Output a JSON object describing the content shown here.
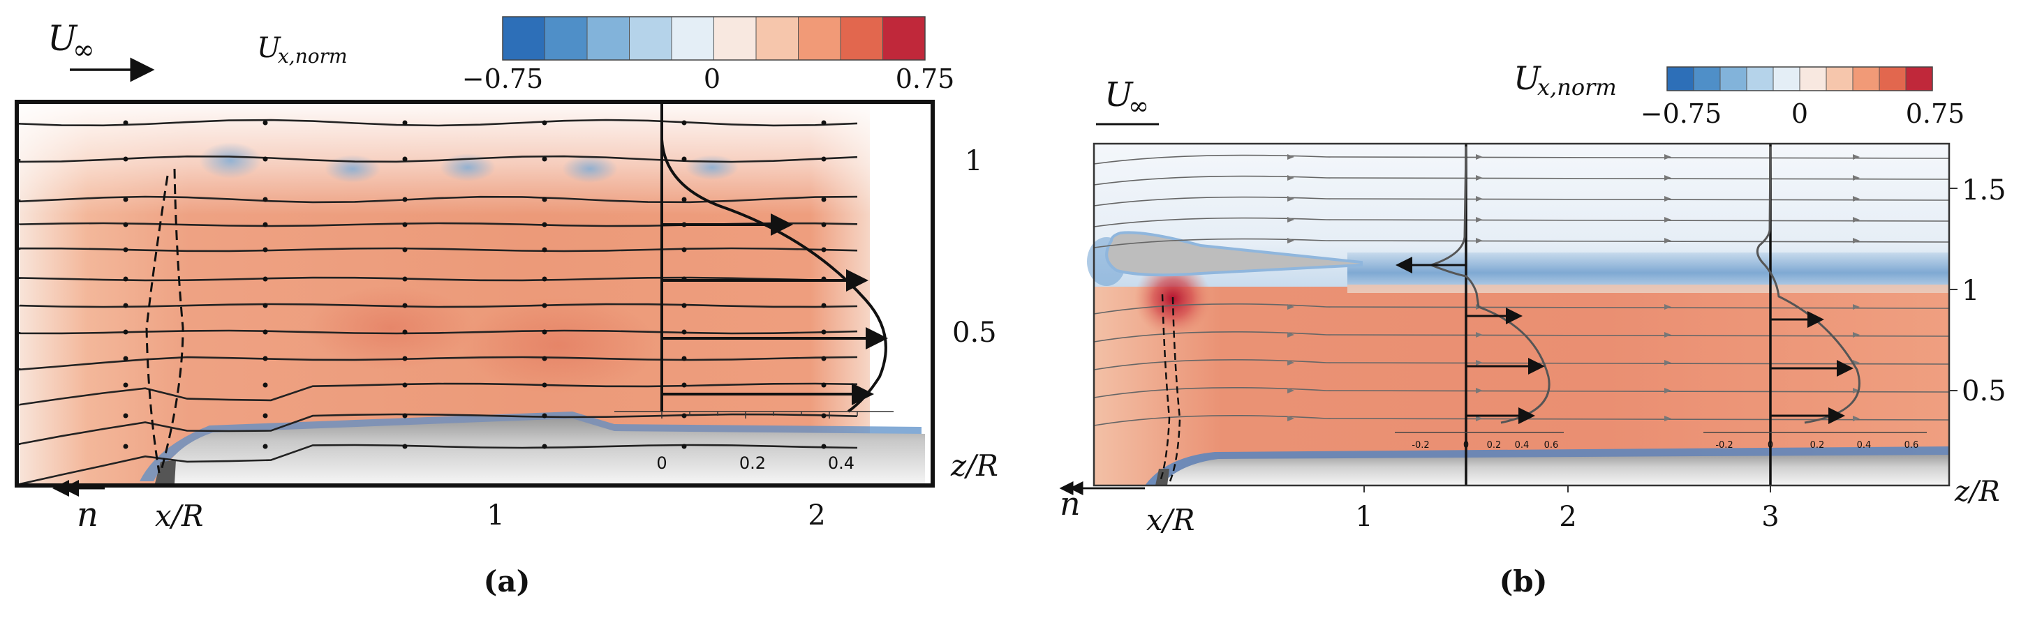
{
  "colorbar": {
    "colors": [
      "#2d6fb8",
      "#4f8fc8",
      "#82b3da",
      "#b5d3ea",
      "#e4eef6",
      "#f8e8e0",
      "#f6c6ac",
      "#f19a77",
      "#e2674e",
      "#c0283a"
    ]
  },
  "panel_a": {
    "freestream_label": "U",
    "freestream_subscript": "∞",
    "colorbar_title": "U",
    "colorbar_title_sub": "x,norm",
    "colorbar_ticks": [
      "−0.75",
      "0",
      "0.75"
    ],
    "z_ticks": [
      "1",
      "0.5"
    ],
    "z_label": "z/R",
    "x_ticks": [
      "1",
      "2"
    ],
    "x_label": "x/R",
    "normal_label": "n",
    "profile_ticks": [
      "0",
      "0.2",
      "0.4"
    ],
    "caption": "(a)"
  },
  "panel_b": {
    "freestream_label": "U",
    "freestream_subscript": "∞",
    "colorbar_title": "U",
    "colorbar_title_sub": "x,norm",
    "colorbar_ticks": [
      "−0.75",
      "0",
      "0.75"
    ],
    "z_ticks": [
      "1.5",
      "1",
      "0.5"
    ],
    "z_label": "z/R",
    "x_ticks": [
      "1",
      "2",
      "3"
    ],
    "x_label": "x/R",
    "normal_label": "n",
    "profile_ticks_1": [
      "-0.2",
      "0",
      "0.2",
      "0.4",
      "0.6"
    ],
    "profile_ticks_2": [
      "-0.2",
      "0",
      "0.2",
      "0.4",
      "0.6"
    ],
    "caption": "(b)"
  }
}
